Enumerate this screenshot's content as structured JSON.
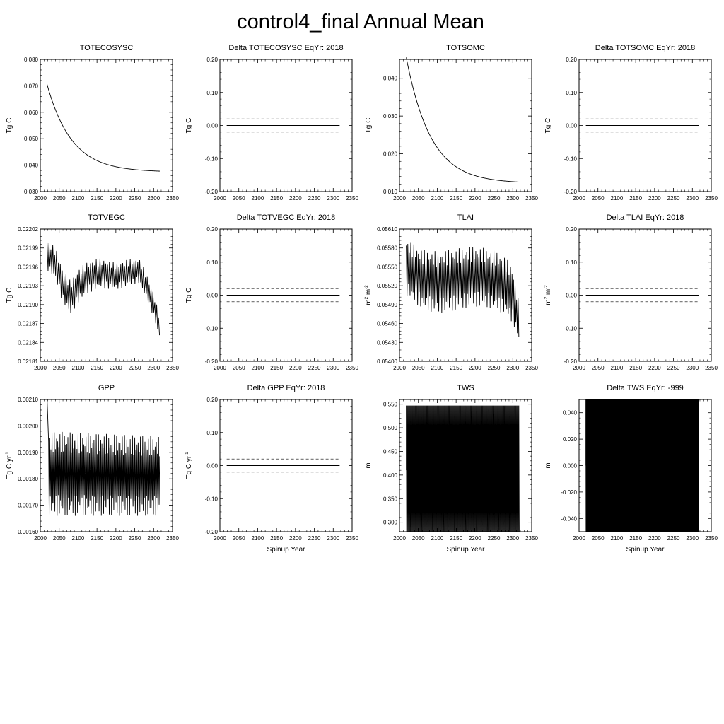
{
  "title": "control4_final Annual Mean",
  "chart_data": [
    {
      "type": "line",
      "title": "TOTECOSYSC",
      "ylabel": "Tg C",
      "ylabel_sup": "",
      "ylabel_post": "",
      "xlabel": "",
      "xlim": [
        2000,
        2350
      ],
      "ylim": [
        0.03,
        0.08
      ],
      "xticks": [
        "2000",
        "2050",
        "2100",
        "2150",
        "2200",
        "2250",
        "2300",
        "2350"
      ],
      "yticks": [
        "0.030",
        "0.040",
        "0.050",
        "0.060",
        "0.070",
        "0.080"
      ],
      "curve": {
        "kind": "decay",
        "x0": 2018,
        "x1": 2317,
        "y0": 0.0705,
        "yinf": 0.0374,
        "tau": 65
      },
      "ref_lines": []
    },
    {
      "type": "line",
      "title": "Delta TOTECOSYSC EqYr: 2018",
      "ylabel": "Tg C",
      "ylabel_sup": "",
      "ylabel_post": "",
      "xlabel": "",
      "xlim": [
        2000,
        2350
      ],
      "ylim": [
        -0.2,
        0.2
      ],
      "xticks": [
        "2000",
        "2050",
        "2100",
        "2150",
        "2200",
        "2250",
        "2300",
        "2350"
      ],
      "yticks": [
        "-0.20",
        "-0.10",
        "0.00",
        "0.10",
        "0.20"
      ],
      "curve": {
        "kind": "flat",
        "x0": 2018,
        "x1": 2317,
        "y": 0.0
      },
      "ref_lines": [
        0.02,
        -0.02
      ]
    },
    {
      "type": "line",
      "title": "TOTSOMC",
      "ylabel": "Tg C",
      "ylabel_sup": "",
      "ylabel_post": "",
      "xlabel": "",
      "xlim": [
        2000,
        2350
      ],
      "ylim": [
        0.01,
        0.045
      ],
      "xticks": [
        "2000",
        "2050",
        "2100",
        "2150",
        "2200",
        "2250",
        "2300",
        "2350"
      ],
      "yticks": [
        "0.010",
        "0.020",
        "0.030",
        "0.040"
      ],
      "curve": {
        "kind": "decay",
        "x0": 2018,
        "x1": 2317,
        "y0": 0.0455,
        "yinf": 0.0122,
        "tau": 65
      },
      "ref_lines": []
    },
    {
      "type": "line",
      "title": "Delta TOTSOMC EqYr: 2018",
      "ylabel": "Tg C",
      "ylabel_sup": "",
      "ylabel_post": "",
      "xlabel": "",
      "xlim": [
        2000,
        2350
      ],
      "ylim": [
        -0.2,
        0.2
      ],
      "xticks": [
        "2000",
        "2050",
        "2100",
        "2150",
        "2200",
        "2250",
        "2300",
        "2350"
      ],
      "yticks": [
        "-0.20",
        "-0.10",
        "0.00",
        "0.10",
        "0.20"
      ],
      "curve": {
        "kind": "flat",
        "x0": 2018,
        "x1": 2317,
        "y": 0.0
      },
      "ref_lines": [
        0.02,
        -0.02
      ]
    },
    {
      "type": "line",
      "title": "TOTVEGC",
      "ylabel": "Tg C",
      "ylabel_sup": "",
      "ylabel_post": "",
      "xlabel": "",
      "xlim": [
        2000,
        2350
      ],
      "ylim": [
        0.02181,
        0.02202
      ],
      "xticks": [
        "2000",
        "2050",
        "2100",
        "2150",
        "2200",
        "2250",
        "2300",
        "2350"
      ],
      "yticks": [
        "0.02181",
        "0.02184",
        "0.02187",
        "0.02190",
        "0.02193",
        "0.02196",
        "0.02199",
        "0.02202"
      ],
      "curve": {
        "kind": "oscillate",
        "x0": 2018,
        "x1": 2317,
        "step": 5,
        "mid": [
          [
            2018,
            0.02198
          ],
          [
            2040,
            0.021965
          ],
          [
            2060,
            0.02193
          ],
          [
            2080,
            0.02191
          ],
          [
            2100,
            0.02193
          ],
          [
            2130,
            0.021945
          ],
          [
            2160,
            0.02195
          ],
          [
            2200,
            0.021945
          ],
          [
            2230,
            0.02195
          ],
          [
            2260,
            0.021955
          ],
          [
            2280,
            0.02193
          ],
          [
            2300,
            0.0219
          ],
          [
            2317,
            0.02186
          ]
        ],
        "amp": [
          [
            2018,
            2.5e-05
          ],
          [
            2080,
            2.8e-05
          ],
          [
            2200,
            2.2e-05
          ],
          [
            2300,
            2e-05
          ],
          [
            2317,
            1.8e-05
          ]
        ]
      },
      "ref_lines": []
    },
    {
      "type": "line",
      "title": "Delta TOTVEGC EqYr: 2018",
      "ylabel": "Tg C",
      "ylabel_sup": "",
      "ylabel_post": "",
      "xlabel": "",
      "xlim": [
        2000,
        2350
      ],
      "ylim": [
        -0.2,
        0.2
      ],
      "xticks": [
        "2000",
        "2050",
        "2100",
        "2150",
        "2200",
        "2250",
        "2300",
        "2350"
      ],
      "yticks": [
        "-0.20",
        "-0.10",
        "0.00",
        "0.10",
        "0.20"
      ],
      "curve": {
        "kind": "flat",
        "x0": 2018,
        "x1": 2317,
        "y": 0.0
      },
      "ref_lines": [
        0.02,
        -0.02
      ]
    },
    {
      "type": "line",
      "title": "TLAI",
      "ylabel": "m",
      "ylabel_sup": "2",
      "ylabel_post": " m",
      "ylabel_sup2": "-2",
      "xlabel": "",
      "xlim": [
        2000,
        2350
      ],
      "ylim": [
        0.054,
        0.0561
      ],
      "xticks": [
        "2000",
        "2050",
        "2100",
        "2150",
        "2200",
        "2250",
        "2300",
        "2350"
      ],
      "yticks": [
        "0.05400",
        "0.05430",
        "0.05460",
        "0.05490",
        "0.05520",
        "0.05550",
        "0.05580",
        "0.05610"
      ],
      "curve": {
        "kind": "oscillate",
        "x0": 2018,
        "x1": 2317,
        "step": 4,
        "mid": [
          [
            2018,
            0.0555
          ],
          [
            2060,
            0.0553
          ],
          [
            2100,
            0.05525
          ],
          [
            2150,
            0.0553
          ],
          [
            2200,
            0.05535
          ],
          [
            2250,
            0.0553
          ],
          [
            2280,
            0.0552
          ],
          [
            2300,
            0.05505
          ],
          [
            2317,
            0.0546
          ]
        ],
        "amp": [
          [
            2018,
            0.00045
          ],
          [
            2100,
            0.0005
          ],
          [
            2200,
            0.00048
          ],
          [
            2300,
            0.00045
          ],
          [
            2317,
            0.0003
          ]
        ]
      },
      "ref_lines": []
    },
    {
      "type": "line",
      "title": "Delta TLAI EqYr: 2018",
      "ylabel": "m",
      "ylabel_sup": "2",
      "ylabel_post": " m",
      "ylabel_sup2": "-2",
      "xlabel": "",
      "xlim": [
        2000,
        2350
      ],
      "ylim": [
        -0.2,
        0.2
      ],
      "xticks": [
        "2000",
        "2050",
        "2100",
        "2150",
        "2200",
        "2250",
        "2300",
        "2350"
      ],
      "yticks": [
        "-0.20",
        "-0.10",
        "0.00",
        "0.10",
        "0.20"
      ],
      "curve": {
        "kind": "flat",
        "x0": 2018,
        "x1": 2317,
        "y": 0.0
      },
      "ref_lines": [
        0.02,
        -0.02
      ]
    },
    {
      "type": "line",
      "title": "GPP",
      "ylabel": "Tg C yr",
      "ylabel_sup": "-1",
      "ylabel_post": "",
      "xlabel": "",
      "xlim": [
        2000,
        2350
      ],
      "ylim": [
        0.0016,
        0.0021
      ],
      "xticks": [
        "2000",
        "2050",
        "2100",
        "2150",
        "2200",
        "2250",
        "2300",
        "2350"
      ],
      "yticks": [
        "0.00160",
        "0.00170",
        "0.00180",
        "0.00190",
        "0.00200",
        "0.00210"
      ],
      "curve": {
        "kind": "oscillate",
        "x0": 2022,
        "x1": 2317,
        "step": 3,
        "spike": [
          2018,
          0.0021
        ],
        "mid": [
          [
            2022,
            0.00182
          ],
          [
            2317,
            0.00181
          ]
        ],
        "amp": [
          [
            2022,
            0.00016
          ],
          [
            2317,
            0.00015
          ]
        ]
      },
      "ref_lines": []
    },
    {
      "type": "line",
      "title": "Delta GPP EqYr: 2018",
      "ylabel": "Tg C yr",
      "ylabel_sup": "-1",
      "ylabel_post": "",
      "xlabel": "Spinup Year",
      "xlim": [
        2000,
        2350
      ],
      "ylim": [
        -0.2,
        0.2
      ],
      "xticks": [
        "2000",
        "2050",
        "2100",
        "2150",
        "2200",
        "2250",
        "2300",
        "2350"
      ],
      "yticks": [
        "-0.20",
        "-0.10",
        "0.00",
        "0.10",
        "0.20"
      ],
      "curve": {
        "kind": "flat",
        "x0": 2018,
        "x1": 2317,
        "y": 0.0
      },
      "ref_lines": [
        0.02,
        -0.02
      ]
    },
    {
      "type": "line",
      "title": "TWS",
      "ylabel": "m",
      "ylabel_sup": "",
      "ylabel_post": "",
      "xlabel": "Spinup Year",
      "xlim": [
        2000,
        2350
      ],
      "ylim": [
        0.28,
        0.56
      ],
      "xticks": [
        "2000",
        "2050",
        "2100",
        "2150",
        "2200",
        "2250",
        "2300",
        "2350"
      ],
      "yticks": [
        "0.300",
        "0.350",
        "0.400",
        "0.450",
        "0.500",
        "0.550"
      ],
      "curve": {
        "kind": "square",
        "x0": 2018,
        "x1": 2317,
        "step": 2,
        "start": 0.41,
        "hi": 0.547,
        "lo": 0.28
      },
      "ref_lines": []
    },
    {
      "type": "line",
      "title": "Delta TWS EqYr: -999",
      "ylabel": "m",
      "ylabel_sup": "",
      "ylabel_post": "",
      "xlabel": "Spinup Year",
      "xlim": [
        2000,
        2350
      ],
      "ylim": [
        -0.05,
        0.05
      ],
      "xticks": [
        "2000",
        "2050",
        "2100",
        "2150",
        "2200",
        "2250",
        "2300",
        "2350"
      ],
      "yticks": [
        "-0.040",
        "-0.020",
        "0.000",
        "0.020",
        "0.040"
      ],
      "curve": {
        "kind": "square",
        "x0": 2018,
        "x1": 2317,
        "step": 1,
        "start": 0.0,
        "hi": 0.05,
        "lo": -0.05
      },
      "ref_lines": [
        0.0
      ]
    }
  ]
}
